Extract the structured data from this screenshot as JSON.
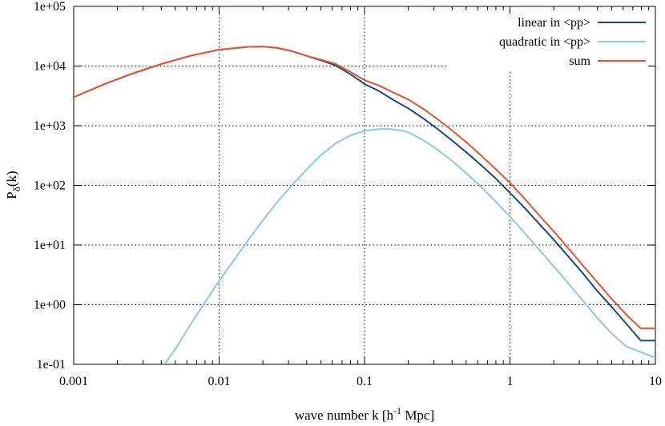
{
  "chart_data": {
    "type": "line",
    "xlabel_main": "wave number k [h",
    "xlabel_sup": "-1",
    "xlabel_tail": " Mpc]",
    "ylabel_main": "P",
    "ylabel_sub": "δ",
    "ylabel_tail": "(k)",
    "x_scale": "log",
    "y_scale": "log",
    "xlim": [
      0.001,
      10
    ],
    "ylim": [
      0.1,
      100000
    ],
    "grid": true,
    "legend_position": "top-right",
    "x_ticks": [
      {
        "value": 0.001,
        "label": "0.001"
      },
      {
        "value": 0.01,
        "label": "0.01"
      },
      {
        "value": 0.1,
        "label": "0.1"
      },
      {
        "value": 1,
        "label": "1"
      },
      {
        "value": 10,
        "label": "10"
      }
    ],
    "y_ticks": [
      {
        "value": 0.1,
        "label": "1e-01"
      },
      {
        "value": 1,
        "label": "1e+00"
      },
      {
        "value": 10,
        "label": "1e+01"
      },
      {
        "value": 100,
        "label": "1e+02"
      },
      {
        "value": 1000,
        "label": "1e+03"
      },
      {
        "value": 10000,
        "label": "1e+04"
      },
      {
        "value": 100000,
        "label": "1e+05"
      }
    ],
    "series": [
      {
        "name": "linear in <pp>",
        "color": "#1a4a80",
        "points": [
          [
            0.001,
            3000
          ],
          [
            0.0016,
            4900
          ],
          [
            0.0025,
            7400
          ],
          [
            0.004,
            10800
          ],
          [
            0.0063,
            14800
          ],
          [
            0.01,
            18800
          ],
          [
            0.0158,
            21000
          ],
          [
            0.02,
            21200
          ],
          [
            0.025,
            20200
          ],
          [
            0.0316,
            17800
          ],
          [
            0.04,
            14800
          ],
          [
            0.05,
            12500
          ],
          [
            0.063,
            10300
          ],
          [
            0.08,
            7300
          ],
          [
            0.1,
            5000
          ],
          [
            0.126,
            3800
          ],
          [
            0.158,
            2700
          ],
          [
            0.2,
            1950
          ],
          [
            0.251,
            1350
          ],
          [
            0.316,
            890
          ],
          [
            0.398,
            570
          ],
          [
            0.5,
            360
          ],
          [
            0.631,
            220
          ],
          [
            0.794,
            132
          ],
          [
            1,
            75
          ],
          [
            1.26,
            42
          ],
          [
            1.58,
            23
          ],
          [
            2,
            12.3
          ],
          [
            2.51,
            6.5
          ],
          [
            3.16,
            3.4
          ],
          [
            3.98,
            1.7
          ],
          [
            5,
            0.92
          ],
          [
            6.31,
            0.48
          ],
          [
            7.94,
            0.25
          ],
          [
            10,
            0.25
          ]
        ]
      },
      {
        "name": "quadratic in <pp>",
        "color": "#88c8ee",
        "points": [
          [
            0.0042,
            0.1
          ],
          [
            0.005,
            0.18
          ],
          [
            0.0063,
            0.45
          ],
          [
            0.008,
            1.1
          ],
          [
            0.01,
            2.5
          ],
          [
            0.0126,
            5.5
          ],
          [
            0.0158,
            12
          ],
          [
            0.02,
            26
          ],
          [
            0.025,
            52
          ],
          [
            0.0316,
            100
          ],
          [
            0.04,
            185
          ],
          [
            0.05,
            320
          ],
          [
            0.063,
            500
          ],
          [
            0.08,
            690
          ],
          [
            0.1,
            820
          ],
          [
            0.126,
            880
          ],
          [
            0.15,
            880
          ],
          [
            0.178,
            830
          ],
          [
            0.2,
            780
          ],
          [
            0.251,
            580
          ],
          [
            0.316,
            400
          ],
          [
            0.398,
            260
          ],
          [
            0.5,
            160
          ],
          [
            0.631,
            95
          ],
          [
            0.794,
            54
          ],
          [
            1,
            30
          ],
          [
            1.26,
            16
          ],
          [
            1.58,
            8.5
          ],
          [
            2,
            4.4
          ],
          [
            2.51,
            2.3
          ],
          [
            3.16,
            1.18
          ],
          [
            3.98,
            0.6
          ],
          [
            5,
            0.33
          ],
          [
            6.31,
            0.2
          ],
          [
            7.94,
            0.16
          ],
          [
            10,
            0.13
          ]
        ]
      },
      {
        "name": "sum",
        "color": "#e8532b",
        "points": [
          [
            0.001,
            3000
          ],
          [
            0.0016,
            4900
          ],
          [
            0.0025,
            7400
          ],
          [
            0.004,
            10800
          ],
          [
            0.0063,
            14800
          ],
          [
            0.01,
            18800
          ],
          [
            0.0158,
            21000
          ],
          [
            0.02,
            21200
          ],
          [
            0.025,
            20200
          ],
          [
            0.0316,
            17800
          ],
          [
            0.04,
            14800
          ],
          [
            0.05,
            12800
          ],
          [
            0.063,
            10900
          ],
          [
            0.08,
            8000
          ],
          [
            0.1,
            5800
          ],
          [
            0.126,
            4700
          ],
          [
            0.158,
            3600
          ],
          [
            0.2,
            2750
          ],
          [
            0.251,
            1950
          ],
          [
            0.316,
            1300
          ],
          [
            0.398,
            840
          ],
          [
            0.5,
            530
          ],
          [
            0.631,
            320
          ],
          [
            0.794,
            190
          ],
          [
            1,
            110
          ],
          [
            1.26,
            60
          ],
          [
            1.58,
            32
          ],
          [
            2,
            17
          ],
          [
            2.51,
            8.9
          ],
          [
            3.16,
            4.6
          ],
          [
            3.98,
            2.4
          ],
          [
            5,
            1.25
          ],
          [
            6.31,
            0.68
          ],
          [
            7.94,
            0.4
          ],
          [
            10,
            0.4
          ]
        ]
      }
    ]
  }
}
